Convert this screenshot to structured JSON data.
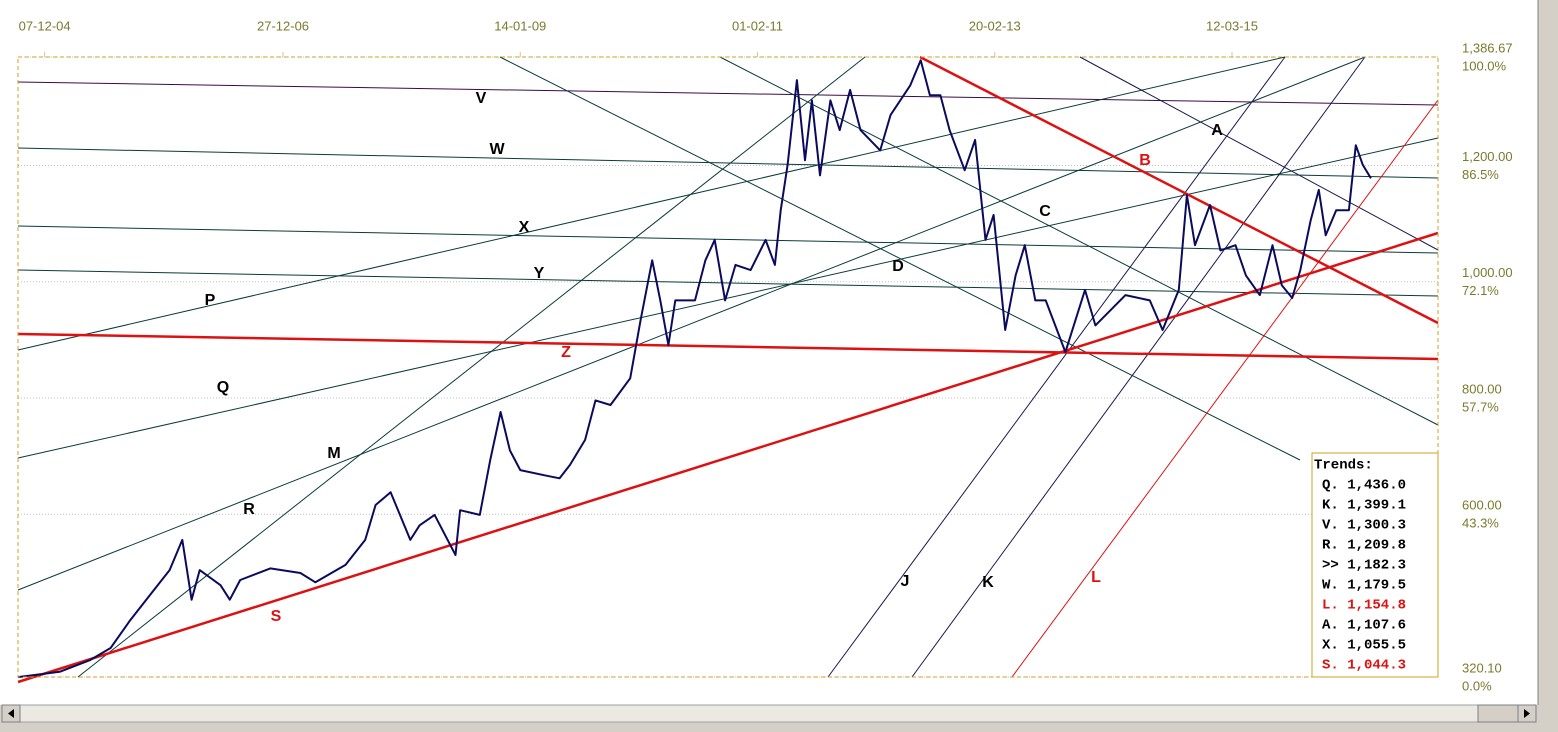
{
  "chart_data": {
    "type": "line",
    "x": [
      2004.7,
      2005.06,
      2005.32,
      2005.5,
      2005.67,
      2005.84,
      2006.01,
      2006.12,
      2006.2,
      2006.27,
      2006.45,
      2006.53,
      2006.62,
      2006.88,
      2007.14,
      2007.27,
      2007.53,
      2007.7,
      2007.79,
      2007.92,
      2008.09,
      2008.17,
      2008.3,
      2008.48,
      2008.52,
      2008.69,
      2008.78,
      2008.87,
      2008.95,
      2009.04,
      2009.25,
      2009.38,
      2009.47,
      2009.6,
      2009.69,
      2009.82,
      2009.99,
      2010.08,
      2010.18,
      2010.25,
      2010.32,
      2010.38,
      2010.55,
      2010.64,
      2010.72,
      2010.81,
      2010.9,
      2011.03,
      2011.16,
      2011.24,
      2011.29,
      2011.35,
      2011.43,
      2011.5,
      2011.56,
      2011.63,
      2011.72,
      2011.8,
      2011.89,
      2011.98,
      2012.15,
      2012.24,
      2012.41,
      2012.5,
      2012.58,
      2012.67,
      2012.75,
      2012.88,
      2012.97,
      2013.06,
      2013.13,
      2013.23,
      2013.32,
      2013.4,
      2013.49,
      2013.58,
      2013.75,
      2013.92,
      2014.01,
      2014.27,
      2014.48,
      2014.59,
      2014.73,
      2014.8,
      2014.87,
      2015.0,
      2015.09,
      2015.22,
      2015.31,
      2015.43,
      2015.54,
      2015.62,
      2015.71,
      2015.78,
      2015.87,
      2015.94,
      2016.0,
      2016.09,
      2016.2,
      2016.26,
      2016.32,
      2016.39
    ],
    "series": [
      {
        "color": "#0b0b5e",
        "values": [
          320,
          329,
          349,
          370,
          418,
          461,
          504,
          556,
          453,
          504,
          478,
          453,
          487,
          507,
          499,
          483,
          513,
          556,
          616,
          638,
          556,
          581,
          599,
          530,
          607,
          599,
          693,
          776,
          710,
          676,
          667,
          662,
          685,
          728,
          796,
          788,
          834,
          934,
          1037,
          968,
          891,
          968,
          968,
          1037,
          1072,
          968,
          1029,
          1020,
          1072,
          1029,
          1123,
          1201,
          1347,
          1209,
          1312,
          1183,
          1312,
          1261,
          1330,
          1261,
          1226,
          1287,
          1338,
          1381,
          1321,
          1321,
          1261,
          1192,
          1244,
          1072,
          1115,
          917,
          1011,
          1063,
          968,
          968,
          879,
          986,
          925,
          977,
          968,
          917,
          986,
          1149,
          1063,
          1132,
          1054,
          1063,
          1011,
          977,
          1063,
          994,
          972,
          1020,
          1106,
          1158,
          1080,
          1123,
          1123,
          1235,
          1201,
          1178
        ]
      }
    ],
    "xlim": [
      2004.7,
      2016.97
    ],
    "xticks": [
      {
        "value": 2004.93,
        "label": "07-12-04"
      },
      {
        "value": 2006.99,
        "label": "27-12-06"
      },
      {
        "value": 2009.04,
        "label": "14-01-09"
      },
      {
        "value": 2011.09,
        "label": "01-02-11"
      },
      {
        "value": 2013.14,
        "label": "20-02-13"
      },
      {
        "value": 2015.19,
        "label": "12-03-15"
      }
    ],
    "ylim": [
      320.1,
      1386.67
    ],
    "yticks": [
      {
        "value": 320.1,
        "label": "320.10"
      },
      {
        "value": 600,
        "label": "600.00"
      },
      {
        "value": 800,
        "label": "800.00"
      },
      {
        "value": 1000,
        "label": "1,000.00"
      },
      {
        "value": 1200,
        "label": "1,200.00"
      },
      {
        "value": 1386.67,
        "label": "1,386.67"
      }
    ],
    "percent_labels": [
      "0.0%",
      "43.3%",
      "57.7%",
      "72.1%",
      "86.5%",
      "100.0%"
    ],
    "grid": true,
    "trendline_labels": [
      {
        "text": "V",
        "color": "#000000"
      },
      {
        "text": "W",
        "color": "#000000"
      },
      {
        "text": "X",
        "color": "#000000"
      },
      {
        "text": "Y",
        "color": "#000000"
      },
      {
        "text": "P",
        "color": "#000000"
      },
      {
        "text": "Q",
        "color": "#000000"
      },
      {
        "text": "M",
        "color": "#000000"
      },
      {
        "text": "R",
        "color": "#000000"
      },
      {
        "text": "S",
        "color": "#dd1111"
      },
      {
        "text": "Z",
        "color": "#dd1111"
      },
      {
        "text": "A",
        "color": "#000000"
      },
      {
        "text": "B",
        "color": "#dd1111"
      },
      {
        "text": "C",
        "color": "#000000"
      },
      {
        "text": "D",
        "color": "#000000"
      },
      {
        "text": "J",
        "color": "#000000"
      },
      {
        "text": "K",
        "color": "#000000"
      },
      {
        "text": "L",
        "color": "#dd1111"
      }
    ],
    "trends_box": {
      "title": "Trends:",
      "rows": [
        {
          "text": "Q. 1,436.0",
          "color": "#000000"
        },
        {
          "text": "K. 1,399.1",
          "color": "#000000"
        },
        {
          "text": "V. 1,300.3",
          "color": "#000000"
        },
        {
          "text": "R. 1,209.8",
          "color": "#000000"
        },
        {
          "text": ">> 1,182.3",
          "color": "#000000"
        },
        {
          "text": "W. 1,179.5",
          "color": "#000000"
        },
        {
          "text": "L. 1,154.8",
          "color": "#dd1111"
        },
        {
          "text": "A. 1,107.6",
          "color": "#000000"
        },
        {
          "text": "X. 1,055.5",
          "color": "#000000"
        },
        {
          "text": "S. 1,044.3",
          "color": "#dd1111"
        }
      ]
    }
  }
}
